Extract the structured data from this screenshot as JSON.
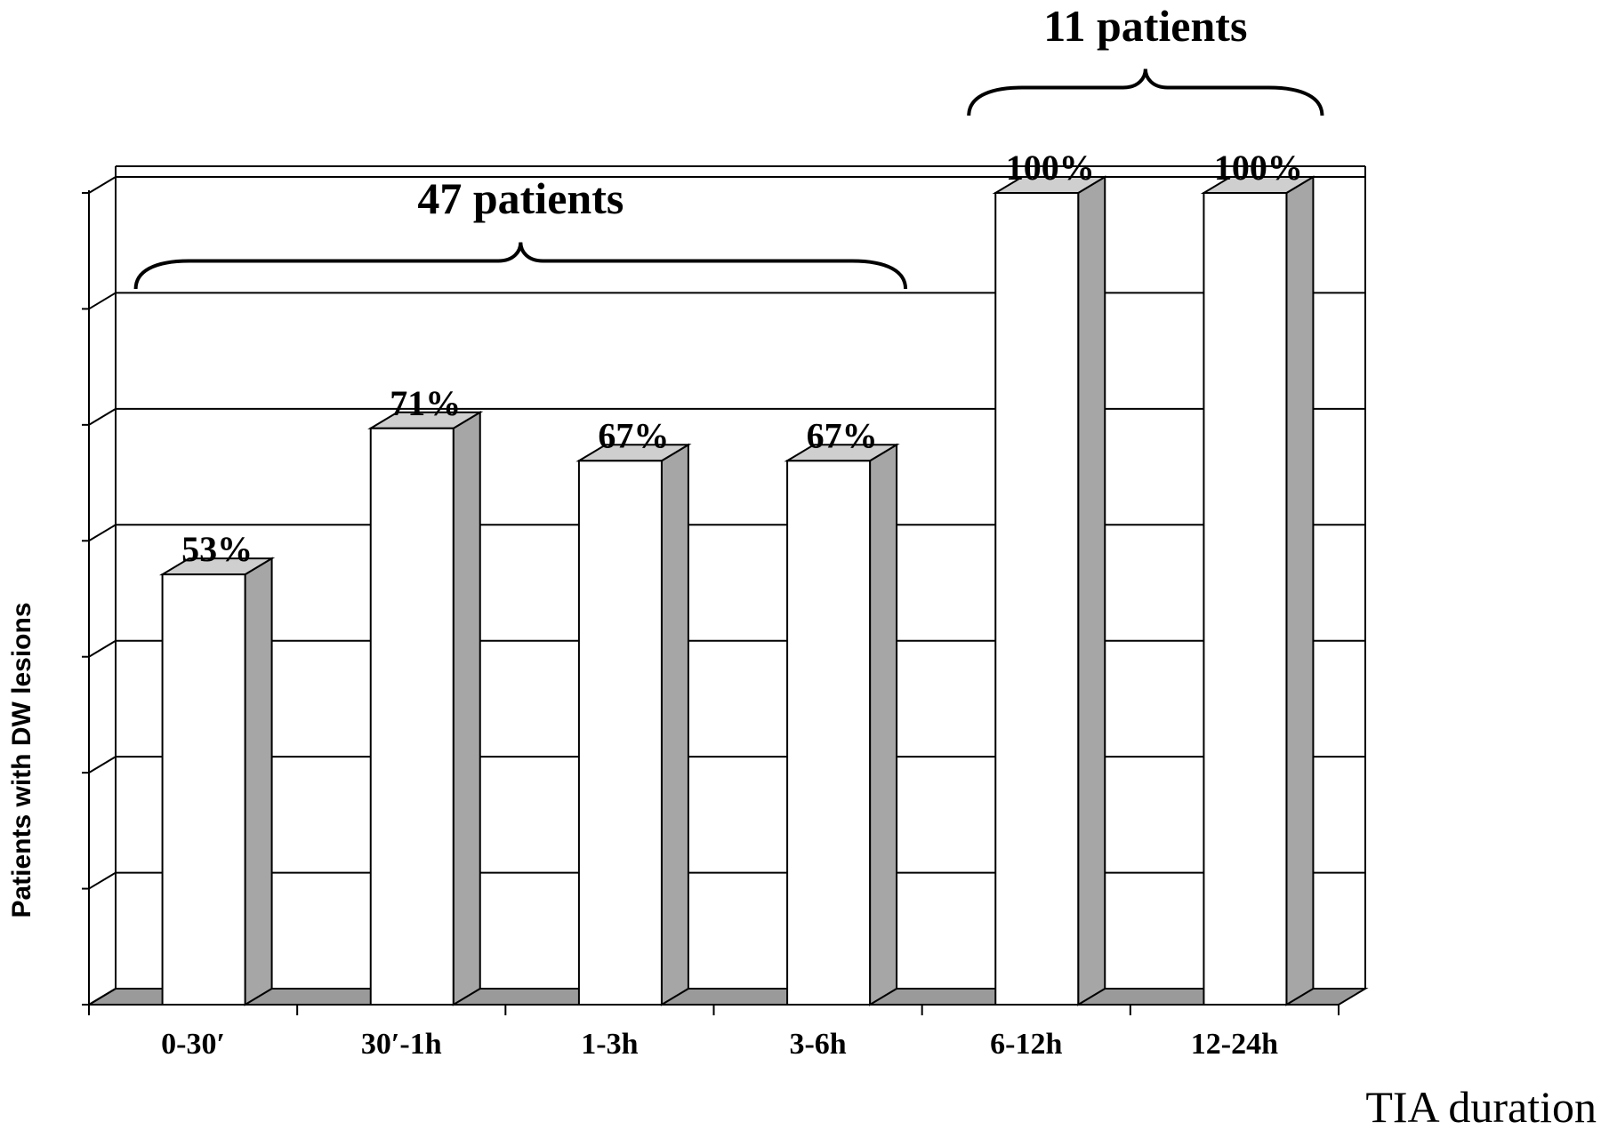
{
  "chart_data": {
    "type": "bar",
    "title": "",
    "xlabel": "TIA duration",
    "ylabel": "Patients with DW lesions",
    "ylim": [
      0,
      100
    ],
    "grid": true,
    "categories": [
      "0-30′",
      "30′-1h",
      "1-3h",
      "3-6h",
      "6-12h",
      "12-24h"
    ],
    "values": [
      53,
      71,
      67,
      67,
      100,
      100
    ],
    "value_labels": [
      "53%",
      "71%",
      "67%",
      "67%",
      "100%",
      "100%"
    ],
    "annotations": [
      {
        "text": "47 patients",
        "from_index": 0,
        "to_index": 3
      },
      {
        "text": "11 patients",
        "from_index": 4,
        "to_index": 5
      }
    ],
    "colors": {
      "bar_front": "#ffffff",
      "bar_side": "#a6a6a6",
      "bar_top": "#cfcfcf",
      "floor": "#9a9a9a",
      "lines": "#000000"
    }
  }
}
